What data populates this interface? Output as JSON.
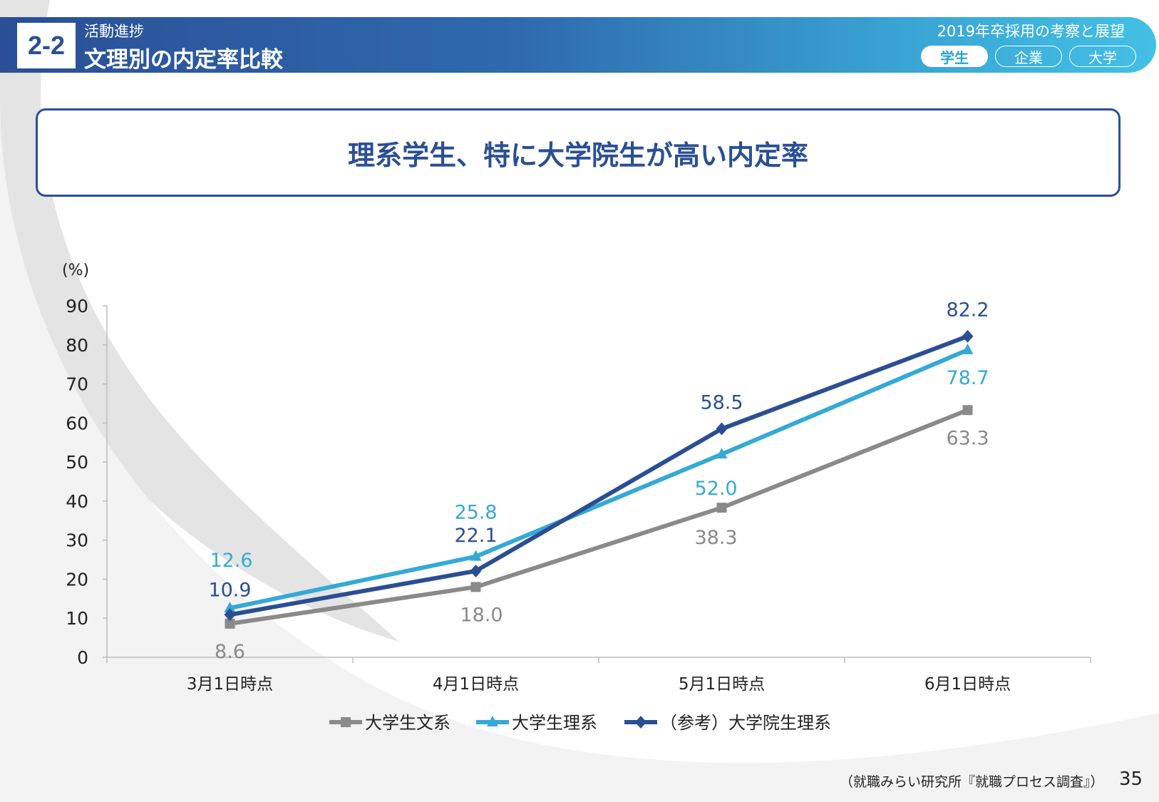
{
  "header": {
    "section_number": "2-2",
    "category": "活動進捗",
    "title": "文理別の内定率比較",
    "series_title": "2019年卒採用の考察と展望",
    "tabs": [
      {
        "label": "学生",
        "active": true
      },
      {
        "label": "企業",
        "active": false
      },
      {
        "label": "大学",
        "active": false
      }
    ]
  },
  "headline": "理系学生、特に大学院生が高い内定率",
  "colors": {
    "primary": "#2a4f96",
    "bunkei": "#8a8a8a",
    "rikei": "#35a9d6",
    "inrikei": "#2b4e93"
  },
  "chart_data": {
    "type": "line",
    "title": "",
    "ylabel": "(%)",
    "xlabel": "",
    "ylim": [
      0,
      90
    ],
    "yticks": [
      "0",
      "10",
      "20",
      "30",
      "40",
      "50",
      "60",
      "70",
      "80",
      "90"
    ],
    "categories": [
      "3月1日時点",
      "4月1日時点",
      "5月1日時点",
      "6月1日時点"
    ],
    "series": [
      {
        "name": "大学生文系",
        "marker": "square",
        "color": "#8a8a8a",
        "values": [
          8.6,
          18.0,
          38.3,
          63.3
        ],
        "labels": [
          "8.6",
          "18.0",
          "38.3",
          "63.3"
        ]
      },
      {
        "name": "大学生理系",
        "marker": "triangle",
        "color": "#35a9d6",
        "values": [
          12.6,
          25.8,
          52.0,
          78.7
        ],
        "labels": [
          "12.6",
          "25.8",
          "52.0",
          "78.7"
        ]
      },
      {
        "name": "（参考）大学院生理系",
        "marker": "diamond",
        "color": "#2b4e93",
        "values": [
          10.9,
          22.1,
          58.5,
          82.2
        ],
        "labels": [
          "10.9",
          "22.1",
          "58.5",
          "82.2"
        ]
      }
    ],
    "legend_position": "bottom"
  },
  "footer": {
    "source": "（就職みらい研究所『就職プロセス調査』）",
    "page": "35"
  }
}
